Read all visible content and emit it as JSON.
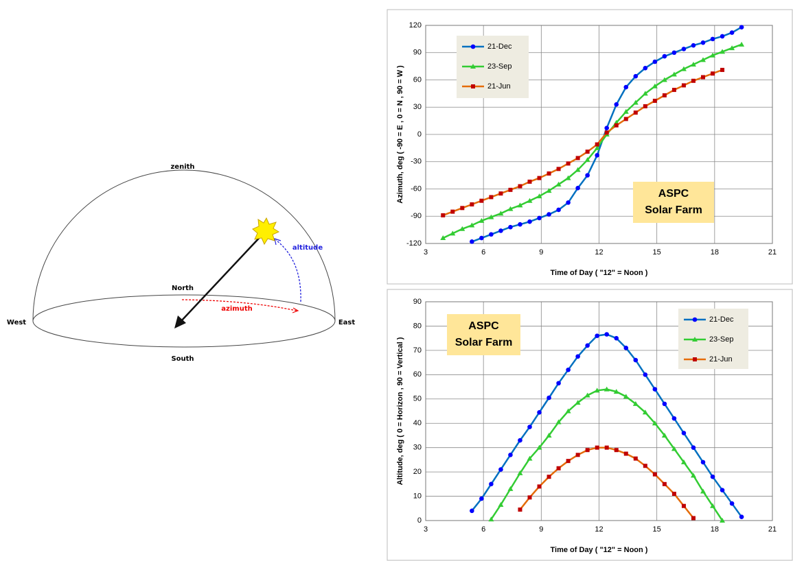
{
  "diagram": {
    "labels": {
      "zenith": "zenith",
      "north": "North",
      "west": "West",
      "east": "East",
      "south": "South",
      "altitude": "altitude",
      "azimuth": "azimuth"
    }
  },
  "chart_data": [
    {
      "type": "line",
      "xlabel": "Time of Day  ( \"12\" = Noon )",
      "ylabel": "Azimuth, deg  ( -90 = E , 0 = N , 90 = W )",
      "xlim": [
        3,
        21
      ],
      "xticks": [
        3,
        6,
        9,
        12,
        15,
        18,
        21
      ],
      "ylim": [
        -120,
        120
      ],
      "yticks": [
        -120,
        -90,
        -60,
        -30,
        0,
        30,
        60,
        90,
        120
      ],
      "grid": true,
      "legend": "upper left",
      "annotation": [
        "ASPC",
        "Solar Farm"
      ],
      "series": [
        {
          "name": "21-Dec",
          "color": "#0070c0",
          "marker": "circle",
          "marker_color": "#0000ff",
          "x": [
            5.4,
            5.9,
            6.4,
            6.9,
            7.4,
            7.9,
            8.4,
            8.9,
            9.4,
            9.9,
            10.4,
            10.9,
            11.4,
            11.9,
            12.4,
            12.9,
            13.4,
            13.9,
            14.4,
            14.9,
            15.4,
            15.9,
            16.4,
            16.9,
            17.4,
            17.9,
            18.4,
            18.9,
            19.4
          ],
          "values": [
            -118,
            -114,
            -110,
            -106,
            -102,
            -99,
            -96,
            -92,
            -88,
            -83,
            -75,
            -59,
            -45,
            -23,
            7,
            33,
            52,
            64,
            73,
            80,
            86,
            90,
            94,
            98,
            101,
            105,
            108,
            112,
            118
          ]
        },
        {
          "name": "23-Sep",
          "color": "#33cc33",
          "marker": "triangle",
          "marker_color": "#33cc33",
          "x": [
            3.9,
            4.4,
            4.9,
            5.4,
            5.9,
            6.4,
            6.9,
            7.4,
            7.9,
            8.4,
            8.9,
            9.4,
            9.9,
            10.4,
            10.9,
            11.4,
            11.9,
            12.4,
            12.9,
            13.4,
            13.9,
            14.4,
            14.9,
            15.4,
            15.9,
            16.4,
            16.9,
            17.4,
            17.9,
            18.4,
            18.9,
            19.4
          ],
          "values": [
            -114,
            -109,
            -104,
            -100,
            -95,
            -91,
            -87,
            -82,
            -78,
            -73,
            -68,
            -62,
            -55,
            -48,
            -39,
            -28,
            -15,
            0,
            13,
            25,
            35,
            45,
            53,
            60,
            66,
            72,
            77,
            82,
            87,
            91,
            95,
            99
          ]
        },
        {
          "name": "21-Jun",
          "color": "#e46c0a",
          "marker": "square",
          "marker_color": "#c00000",
          "x": [
            3.9,
            4.4,
            4.9,
            5.4,
            5.9,
            6.4,
            6.9,
            7.4,
            7.9,
            8.4,
            8.9,
            9.4,
            9.9,
            10.4,
            10.9,
            11.4,
            11.9,
            12.4,
            12.9,
            13.4,
            13.9,
            14.4,
            14.9,
            15.4,
            15.9,
            16.4,
            16.9,
            17.4,
            17.9,
            18.4
          ],
          "values": [
            -89,
            -85,
            -81,
            -77,
            -73,
            -69,
            -65,
            -61,
            -57,
            -52,
            -48,
            -43,
            -38,
            -32,
            -26,
            -19,
            -11,
            2,
            10,
            17,
            24,
            31,
            37,
            43,
            49,
            54,
            59,
            63,
            67,
            71
          ]
        }
      ]
    },
    {
      "type": "line",
      "xlabel": "Time of Day  ( \"12\" = Noon )",
      "ylabel": "Altitude, deg  ( 0 = Horizon , 90 = Vertical )",
      "xlim": [
        3,
        21
      ],
      "xticks": [
        3,
        6,
        9,
        12,
        15,
        18,
        21
      ],
      "ylim": [
        0,
        90
      ],
      "yticks": [
        0,
        10,
        20,
        30,
        40,
        50,
        60,
        70,
        80,
        90
      ],
      "grid": true,
      "legend": "upper right",
      "annotation": [
        "ASPC",
        "Solar Farm"
      ],
      "series": [
        {
          "name": "21-Dec",
          "color": "#0070c0",
          "marker": "circle",
          "marker_color": "#0000ff",
          "x": [
            5.4,
            5.9,
            6.4,
            6.9,
            7.4,
            7.9,
            8.4,
            8.9,
            9.4,
            9.9,
            10.4,
            10.9,
            11.4,
            11.9,
            12.4,
            12.9,
            13.4,
            13.9,
            14.4,
            14.9,
            15.4,
            15.9,
            16.4,
            16.9,
            17.4,
            17.9,
            18.4,
            18.9,
            19.4
          ],
          "values": [
            4,
            9,
            15,
            21,
            27,
            33,
            38.5,
            44.5,
            50.5,
            56.5,
            62,
            67.5,
            72,
            76,
            76.6,
            75,
            71,
            66,
            60,
            54,
            48,
            42,
            36,
            30,
            24,
            18,
            12.5,
            7,
            1.5
          ]
        },
        {
          "name": "23-Sep",
          "color": "#33cc33",
          "marker": "triangle",
          "marker_color": "#33cc33",
          "x": [
            6.4,
            6.9,
            7.4,
            7.9,
            8.4,
            8.9,
            9.4,
            9.9,
            10.4,
            10.9,
            11.4,
            11.9,
            12.4,
            12.9,
            13.4,
            13.9,
            14.4,
            14.9,
            15.4,
            15.9,
            16.4,
            16.9,
            17.4,
            17.9,
            18.4
          ],
          "values": [
            0.5,
            6.5,
            13,
            19.5,
            25.5,
            30,
            35,
            40.5,
            45,
            48.5,
            51.5,
            53.5,
            54,
            53,
            51,
            48,
            44.5,
            40,
            35,
            29.5,
            24,
            18.5,
            12,
            6,
            0
          ]
        },
        {
          "name": "21-Jun",
          "color": "#e46c0a",
          "marker": "square",
          "marker_color": "#c00000",
          "x": [
            7.9,
            8.4,
            8.9,
            9.4,
            9.9,
            10.4,
            10.9,
            11.4,
            11.9,
            12.4,
            12.9,
            13.4,
            13.9,
            14.4,
            14.9,
            15.4,
            15.9,
            16.4,
            16.9
          ],
          "values": [
            4.5,
            9.5,
            14,
            18,
            21.5,
            24.5,
            27,
            29,
            30,
            30,
            29,
            27.5,
            25.5,
            22.5,
            19,
            15,
            11,
            6,
            1
          ]
        }
      ]
    }
  ]
}
